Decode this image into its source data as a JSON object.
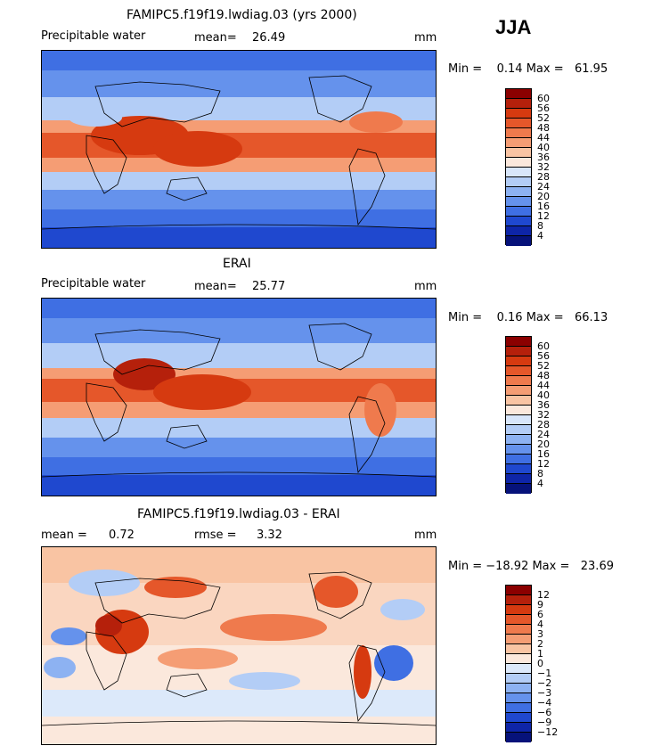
{
  "season": "JJA",
  "panels": [
    {
      "title": "FAMIPC5.f19f19.lwdiag.03 (yrs 2000)",
      "left_label": "Precipitable water",
      "stat_label": "mean=",
      "stat_value": "26.49",
      "unit": "mm",
      "minmax": "Min =    0.14 Max =   61.95"
    },
    {
      "title": "ERAI",
      "left_label": "Precipitable water",
      "stat_label": "mean=",
      "stat_value": "25.77",
      "unit": "mm",
      "minmax": "Min =    0.16 Max =   66.13"
    },
    {
      "title": "FAMIPC5.f19f19.lwdiag.03 - ERAI",
      "left_label": "mean =",
      "left_value": "0.72",
      "stat_label": "rmse =",
      "stat_value": "3.32",
      "unit": "mm",
      "minmax": "Min = −18.92 Max =   23.69"
    }
  ],
  "colorbars": {
    "absolute": {
      "labels": [
        "60",
        "56",
        "52",
        "48",
        "44",
        "40",
        "36",
        "32",
        "28",
        "24",
        "20",
        "16",
        "12",
        "8",
        "4"
      ],
      "colors": [
        "#8b0000",
        "#b5200b",
        "#d63a10",
        "#e5572a",
        "#ef7a4d",
        "#f59d74",
        "#f9c4a3",
        "#fbe8dc",
        "#d8e6fa",
        "#b3cdf6",
        "#8db2f2",
        "#6592ec",
        "#3f6fe3",
        "#1f48cf",
        "#0e25a8",
        "#06127a"
      ]
    },
    "difference": {
      "labels": [
        "12",
        "9",
        "6",
        "4",
        "3",
        "2",
        "1",
        "0",
        "−1",
        "−2",
        "−3",
        "−4",
        "−6",
        "−9",
        "−12"
      ],
      "colors": [
        "#8b0000",
        "#b5200b",
        "#d63a10",
        "#e5572a",
        "#ef7a4d",
        "#f59d74",
        "#f9c4a3",
        "#fbe8dc",
        "#dce9fa",
        "#b3cdf6",
        "#8db2f2",
        "#6592ec",
        "#3f6fe3",
        "#1f48cf",
        "#0e25a8",
        "#06127a"
      ]
    }
  }
}
